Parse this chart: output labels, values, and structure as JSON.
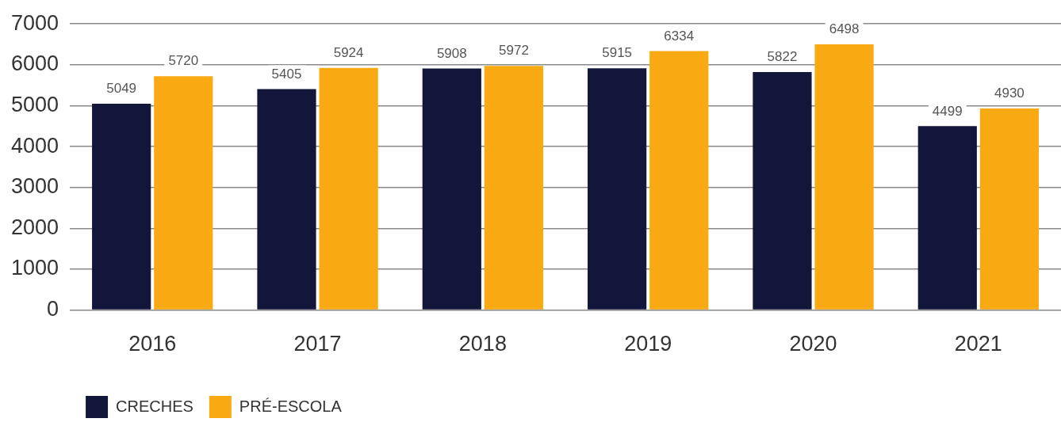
{
  "chart_data": {
    "type": "bar",
    "categories": [
      "2016",
      "2017",
      "2018",
      "2019",
      "2020",
      "2021"
    ],
    "series": [
      {
        "name": "CRECHES",
        "color": "#12163a",
        "values": [
          5049,
          5405,
          5908,
          5915,
          5822,
          4499
        ]
      },
      {
        "name": "PRÉ-ESCOLA",
        "color": "#f9aa12",
        "values": [
          5720,
          5924,
          5972,
          6334,
          6498,
          4930
        ]
      }
    ],
    "ylim": [
      0,
      7000
    ],
    "yticks": [
      0,
      1000,
      2000,
      3000,
      4000,
      5000,
      6000,
      7000
    ],
    "grid": "y",
    "legend": "bottom left",
    "data_labels": true
  }
}
